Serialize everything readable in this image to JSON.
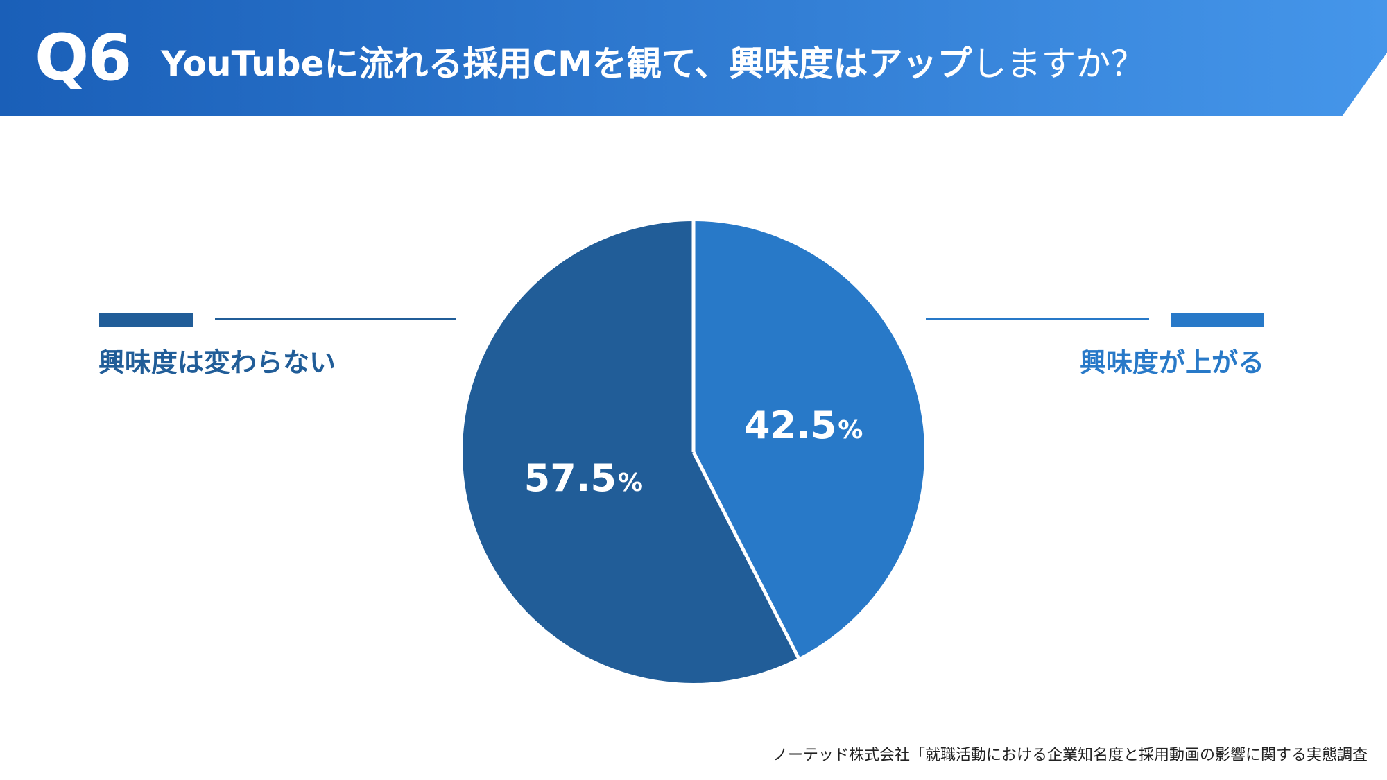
{
  "header": {
    "question_number": "Q6",
    "title_part1": "YouTubeに流れる採用CMを観て、",
    "title_part2": "興味度はアップ",
    "title_part3": "しますか？"
  },
  "colors": {
    "header_gradient_start": "#1a5fb8",
    "header_gradient_end": "#4596ea",
    "series_dark": "#215d98",
    "series_light": "#2879c8",
    "divider": "#ffffff"
  },
  "chart_data": {
    "type": "pie",
    "title": "YouTubeに流れる採用CMを観て、興味度はアップしますか？",
    "series": [
      {
        "name": "興味度が上がる",
        "value": 42.5,
        "label": "42.5",
        "unit": "%",
        "color": "#2879c8"
      },
      {
        "name": "興味度は変わらない",
        "value": 57.5,
        "label": "57.5",
        "unit": "%",
        "color": "#215d98"
      }
    ],
    "start_angle": "12 o'clock",
    "direction": "clockwise"
  },
  "legend": {
    "left_label": "興味度は変わらない",
    "right_label": "興味度が上がる"
  },
  "source": "ノーテッド株式会社「就職活動における企業知名度と採用動画の影響に関する実態調査"
}
